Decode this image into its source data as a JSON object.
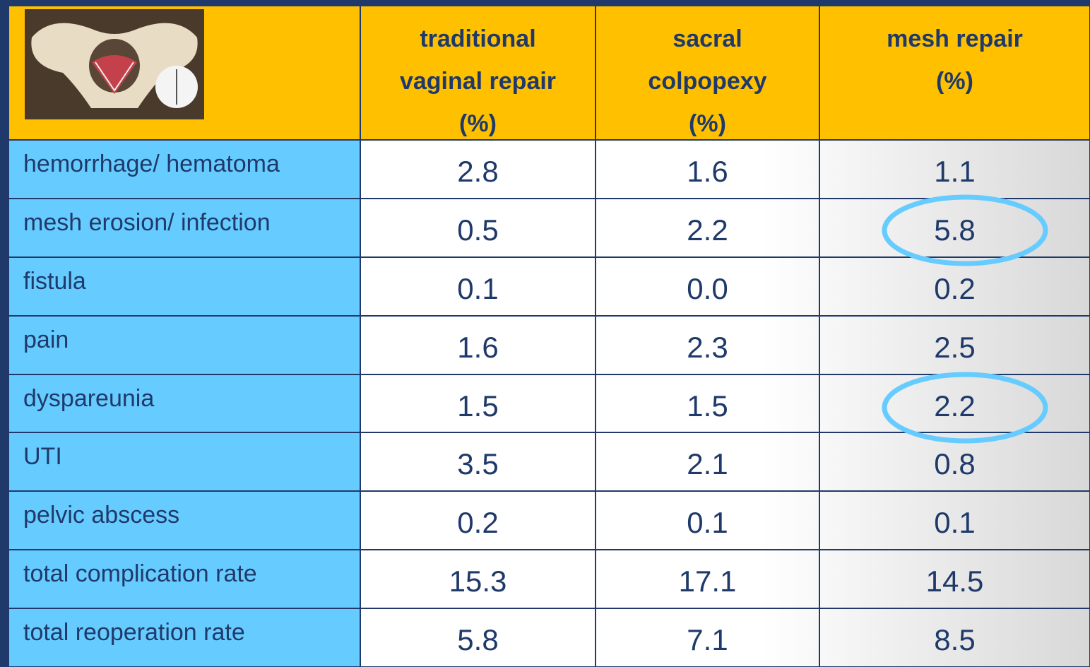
{
  "table": {
    "columns": [
      [
        "traditional",
        "vaginal repair",
        "(%)"
      ],
      [
        "sacral",
        "colpopexy",
        "(%)"
      ],
      [
        "mesh repair",
        "(%)"
      ]
    ],
    "rows": [
      [
        "hemorrhage/ hematoma",
        "2.8",
        "1.6",
        "1.1"
      ],
      [
        "mesh erosion/ infection",
        "0.5",
        "2.2",
        "5.8"
      ],
      [
        "fistula",
        "0.1",
        "0.0",
        "0.2"
      ],
      [
        "pain",
        "1.6",
        "2.3",
        "2.5"
      ],
      [
        "dyspareunia",
        "1.5",
        "1.5",
        "2.2"
      ],
      [
        "UTI",
        "3.5",
        "2.1",
        "0.8"
      ],
      [
        "pelvic abscess",
        "0.2",
        "0.1",
        "0.1"
      ],
      [
        "total complication rate",
        "15.3",
        "17.1",
        "14.5"
      ],
      [
        "total reoperation rate",
        "5.8",
        "7.1",
        "8.5"
      ]
    ]
  }
}
